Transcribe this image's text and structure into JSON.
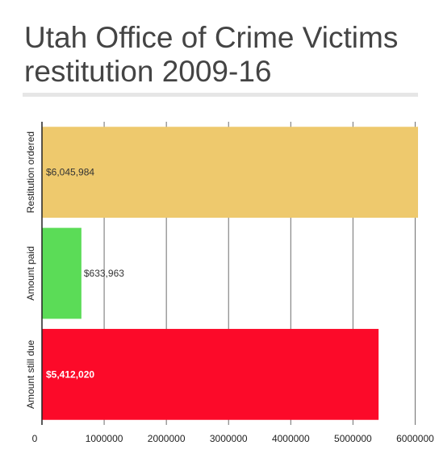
{
  "chart_data": {
    "type": "bar",
    "orientation": "horizontal",
    "title": "Utah Office of Crime Victims restitution 2009-16",
    "categories": [
      "Restitution ordered",
      "Amount paid",
      "Amount still due"
    ],
    "values": [
      6045984,
      633963,
      5412020
    ],
    "data_labels": [
      "$6,045,984",
      "$633,963",
      "$5,412,020"
    ],
    "colors": [
      "#eec96d",
      "#5bdc57",
      "#fc0a29"
    ],
    "label_colors": [
      "#333333",
      "#333333",
      "#ffffff"
    ],
    "x_ticks": [
      0,
      1000000,
      2000000,
      3000000,
      4000000,
      5000000,
      6000000
    ],
    "x_tick_labels": [
      "0",
      "1000000",
      "2000000",
      "3000000",
      "4000000",
      "5000000",
      "6000000"
    ],
    "xlim": [
      0,
      6045984
    ],
    "xlabel": "",
    "ylabel": "",
    "grid": true,
    "legend": "none"
  }
}
